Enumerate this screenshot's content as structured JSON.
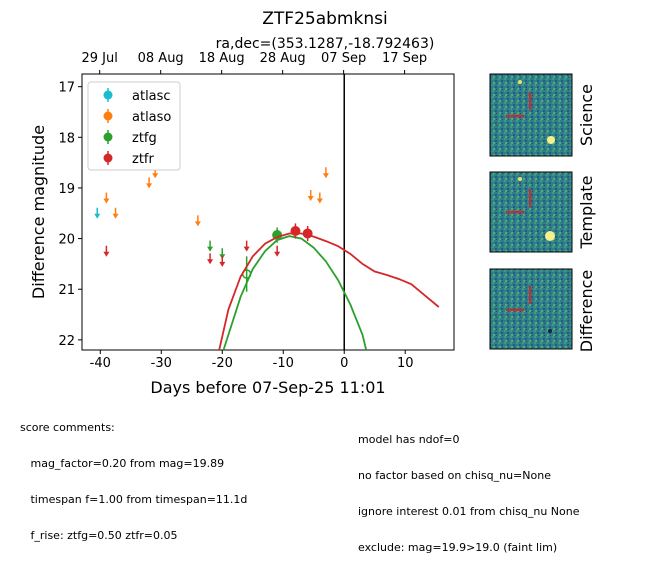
{
  "chart_data": {
    "type": "scatter",
    "title": "ZTF25abmknsi",
    "subtitle": "ra,dec=(353.1287,-18.792463)",
    "xlabel": "Days before 07-Sep-25 11:01",
    "ylabel": "Difference magnitude",
    "xlim": [
      -43,
      18
    ],
    "ylim": [
      22.2,
      16.75
    ],
    "y_inverted": true,
    "xticks": [
      -40,
      -30,
      -20,
      -10,
      0,
      10
    ],
    "yticks": [
      17,
      18,
      19,
      20,
      21,
      22
    ],
    "top_axis_ticks": [
      {
        "x": -40.1,
        "label": "29 Jul"
      },
      {
        "x": -30.1,
        "label": "08 Aug"
      },
      {
        "x": -20.1,
        "label": "18 Aug"
      },
      {
        "x": -10.1,
        "label": "28 Aug"
      },
      {
        "x": -0.1,
        "label": "07 Sep"
      },
      {
        "x": 9.9,
        "label": "17 Sep"
      }
    ],
    "reference_line_x": 0,
    "legend_placement": "top-left",
    "series": [
      {
        "name": "atlasc",
        "color": "#17becf",
        "upper_limits": [
          {
            "x": -40.5,
            "y": 19.45
          }
        ]
      },
      {
        "name": "atlaso",
        "color": "#ff7f0e",
        "upper_limits": [
          {
            "x": -39,
            "y": 19.15
          },
          {
            "x": -37.5,
            "y": 19.45
          },
          {
            "x": -32,
            "y": 18.85
          },
          {
            "x": -31,
            "y": 18.65
          },
          {
            "x": -24,
            "y": 19.6
          },
          {
            "x": -5.5,
            "y": 19.1
          },
          {
            "x": -4,
            "y": 19.15
          },
          {
            "x": -3,
            "y": 18.65
          }
        ]
      },
      {
        "name": "ztfg",
        "color": "#2ca02c",
        "upper_limits": [
          {
            "x": -22,
            "y": 20.1
          },
          {
            "x": -20,
            "y": 20.25
          }
        ],
        "detections": [
          {
            "x": -11,
            "y": 19.93,
            "err": 0.15
          }
        ],
        "open_points": [
          {
            "x": -16,
            "y": 20.7,
            "err": 0.35
          }
        ],
        "model": [
          {
            "x": -19.8,
            "y": 22.2
          },
          {
            "x": -17,
            "y": 21.15
          },
          {
            "x": -15,
            "y": 20.6
          },
          {
            "x": -13,
            "y": 20.25
          },
          {
            "x": -11,
            "y": 20.03
          },
          {
            "x": -9,
            "y": 19.95
          },
          {
            "x": -7,
            "y": 20.0
          },
          {
            "x": -5,
            "y": 20.18
          },
          {
            "x": -3,
            "y": 20.45
          },
          {
            "x": -1,
            "y": 20.82
          },
          {
            "x": 1,
            "y": 21.3
          },
          {
            "x": 3,
            "y": 21.9
          },
          {
            "x": 3.6,
            "y": 22.2
          }
        ]
      },
      {
        "name": "ztfr",
        "color": "#d62728",
        "upper_limits": [
          {
            "x": -39,
            "y": 20.2
          },
          {
            "x": -22,
            "y": 20.35
          },
          {
            "x": -20,
            "y": 20.4
          },
          {
            "x": -16,
            "y": 20.1
          },
          {
            "x": -11,
            "y": 20.2
          }
        ],
        "detections": [
          {
            "x": -8,
            "y": 19.85,
            "err": 0.15
          },
          {
            "x": -6,
            "y": 19.9,
            "err": 0.15
          }
        ],
        "model": [
          {
            "x": -20.5,
            "y": 22.2
          },
          {
            "x": -19,
            "y": 21.4
          },
          {
            "x": -17,
            "y": 20.75
          },
          {
            "x": -15,
            "y": 20.35
          },
          {
            "x": -13,
            "y": 20.1
          },
          {
            "x": -11,
            "y": 19.97
          },
          {
            "x": -9,
            "y": 19.9
          },
          {
            "x": -7,
            "y": 19.9
          },
          {
            "x": -5,
            "y": 19.96
          },
          {
            "x": -3,
            "y": 20.05
          },
          {
            "x": -1,
            "y": 20.15
          },
          {
            "x": 1,
            "y": 20.3
          },
          {
            "x": 3,
            "y": 20.5
          },
          {
            "x": 5,
            "y": 20.65
          },
          {
            "x": 7,
            "y": 20.72
          },
          {
            "x": 9,
            "y": 20.8
          },
          {
            "x": 11,
            "y": 20.9
          },
          {
            "x": 13,
            "y": 21.1
          },
          {
            "x": 15.5,
            "y": 21.35
          }
        ]
      }
    ]
  },
  "stamps": [
    "Science",
    "Template",
    "Difference"
  ],
  "comments_left": [
    "score comments:",
    "   mag_factor=0.20 from mag=19.89",
    "   timespan f=1.00 from timespan=11.1d",
    "   f_rise: ztfg=0.50 ztfr=0.05"
  ],
  "comments_right": [
    "model has ndof=0",
    "no factor based on chisq_nu=None",
    "ignore interest 0.01 from chisq_nu None",
    "exclude: mag=19.9>19.0 (faint lim)"
  ]
}
